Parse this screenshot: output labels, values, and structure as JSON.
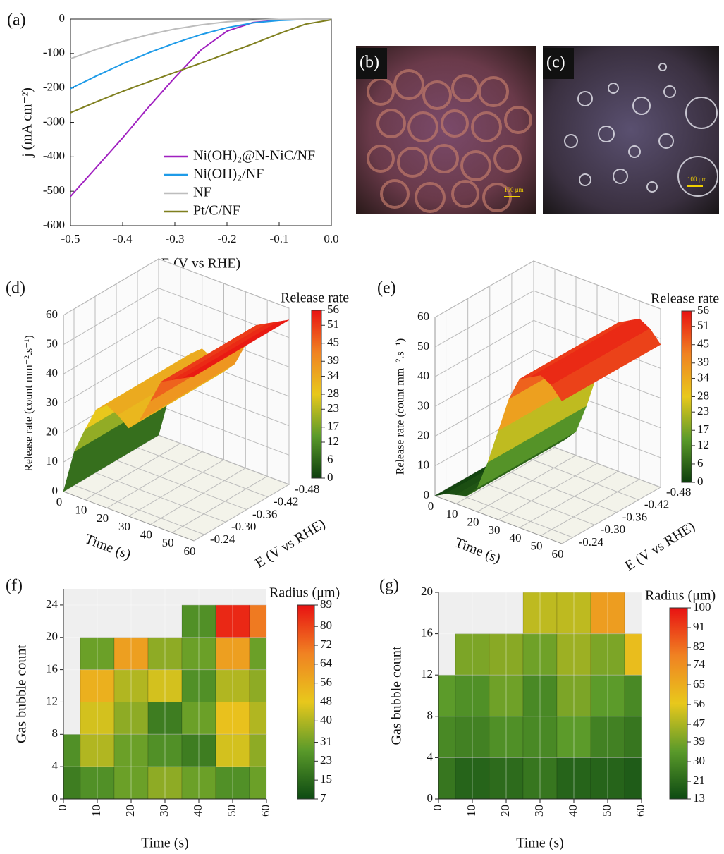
{
  "chart_data": [
    {
      "type": "line",
      "panel_label": "(a)",
      "xlabel": "E (V vs RHE)",
      "ylabel": "j (mA cm⁻²)",
      "x": [
        -0.5,
        -0.45,
        -0.4,
        -0.35,
        -0.3,
        -0.25,
        -0.2,
        -0.15,
        -0.1,
        -0.05,
        0
      ],
      "xlim": [
        -0.5,
        0
      ],
      "xticks": [
        -0.5,
        -0.4,
        -0.3,
        -0.2,
        -0.1,
        {
          "value": 0,
          "label": "0.0"
        }
      ],
      "ylim": [
        -600,
        0
      ],
      "yticks": [
        -600,
        -500,
        -400,
        -300,
        -200,
        -100,
        0
      ],
      "legend": "lower right",
      "series": [
        {
          "name": "Ni(OH)₂@N-NiC/NF",
          "color": "#a020c0",
          "values": [
            -515,
            -430,
            -345,
            -255,
            -170,
            -90,
            -35,
            -10,
            -3,
            -1,
            0
          ]
        },
        {
          "name": "Ni(OH)₂/NF",
          "color": "#1e9be8",
          "values": [
            -202,
            -165,
            -130,
            -98,
            -70,
            -45,
            -25,
            -11,
            -4,
            -1,
            0
          ]
        },
        {
          "name": "NF",
          "color": "#bdbdbd",
          "values": [
            -115,
            -88,
            -65,
            -45,
            -29,
            -17,
            -8,
            -3,
            -1,
            0,
            0
          ]
        },
        {
          "name": "Pt/C/NF",
          "color": "#7f7f1e",
          "values": [
            -272,
            -240,
            -210,
            -182,
            -155,
            -128,
            -100,
            -72,
            -42,
            -15,
            -2
          ]
        }
      ]
    },
    {
      "type": "image",
      "panel_label": "(b)",
      "scale_label": "100 μm"
    },
    {
      "type": "image",
      "panel_label": "(c)",
      "scale_label": "100 μm"
    },
    {
      "type": "surface",
      "panel_label": "(d)",
      "xlabel": "Time (s)",
      "ylabel": "E (V vs RHE)",
      "zlabel": "Release rate (count mm⁻².s⁻¹)",
      "colorbar_label": "Release rate",
      "x": [
        0,
        5,
        10,
        15,
        20,
        25,
        30,
        35,
        40,
        45,
        50,
        55,
        60
      ],
      "values": [
        0,
        15,
        24,
        32,
        35,
        33,
        30,
        34,
        42,
        50,
        52,
        54,
        56
      ],
      "xlim": [
        0,
        60
      ],
      "xticks": [
        0,
        10,
        20,
        30,
        40,
        50,
        60
      ],
      "ylim": [
        -0.21,
        -0.48
      ],
      "yticks": [
        -0.24,
        {
          "value": -0.3,
          "label": "-0.30"
        },
        -0.36,
        -0.42,
        -0.48
      ],
      "zlim": [
        0,
        60
      ],
      "zticks": [
        0,
        10,
        20,
        30,
        40,
        50,
        60
      ],
      "clim": [
        0,
        56
      ],
      "cticks": [
        0,
        6,
        12,
        17,
        23,
        28,
        34,
        39,
        45,
        51,
        56
      ],
      "colors": [
        "#0d3d0d",
        "#5a9a2a",
        "#e8c81c",
        "#f08222",
        "#e81212"
      ]
    },
    {
      "type": "surface",
      "panel_label": "(e)",
      "xlabel": "Time (s)",
      "ylabel": "E (V vs RHE)",
      "zlabel": "Release rate (count mm⁻².s⁻¹)",
      "colorbar_label": "Release rate",
      "x": [
        0,
        5,
        10,
        15,
        20,
        25,
        30,
        35,
        40,
        45,
        50,
        55,
        60
      ],
      "values": [
        0,
        2,
        3,
        4,
        8,
        18,
        30,
        42,
        50,
        52,
        54,
        52,
        48
      ],
      "xlim": [
        0,
        60
      ],
      "xticks": [
        0,
        10,
        20,
        30,
        40,
        50,
        60
      ],
      "ylim": [
        -0.21,
        -0.48
      ],
      "yticks": [
        -0.24,
        {
          "value": -0.3,
          "label": "-0.30"
        },
        -0.36,
        -0.42,
        -0.48
      ],
      "zlim": [
        0,
        60
      ],
      "zticks": [
        0,
        10,
        20,
        30,
        40,
        50,
        60
      ],
      "clim": [
        0,
        56
      ],
      "cticks": [
        0,
        6,
        12,
        17,
        23,
        28,
        34,
        39,
        45,
        51,
        56
      ],
      "colors": [
        "#0d3d0d",
        "#5a9a2a",
        "#e8c81c",
        "#f08222",
        "#e81212"
      ]
    },
    {
      "type": "heatmap",
      "panel_label": "(f)",
      "xlabel": "Time (s)",
      "ylabel": "Gas bubble count",
      "colorbar_label": "Radius (μm)",
      "x": [
        0,
        10,
        20,
        30,
        40,
        50,
        60
      ],
      "y": [
        2,
        6,
        10,
        14,
        18,
        22
      ],
      "z": [
        [
          20,
          25,
          30,
          35,
          30,
          25,
          30
        ],
        [
          25,
          40,
          30,
          25,
          20,
          45,
          35
        ],
        [
          null,
          45,
          35,
          20,
          30,
          50,
          40
        ],
        [
          null,
          55,
          40,
          45,
          25,
          40,
          35
        ],
        [
          null,
          30,
          60,
          35,
          30,
          60,
          30
        ],
        [
          null,
          null,
          null,
          null,
          25,
          85,
          70
        ]
      ],
      "xlim": [
        0,
        60
      ],
      "xticks": [
        0,
        10,
        20,
        30,
        40,
        50,
        60
      ],
      "ylim": [
        0,
        26
      ],
      "yticks": [
        0,
        4,
        8,
        12,
        16,
        20,
        24
      ],
      "clim": [
        7,
        89
      ],
      "cticks": [
        7,
        15,
        23,
        31,
        40,
        48,
        56,
        64,
        72,
        80,
        89
      ],
      "colors": [
        "#0d4a12",
        "#5a9a2a",
        "#e8c81c",
        "#f08222",
        "#e81212"
      ]
    },
    {
      "type": "heatmap",
      "panel_label": "(g)",
      "xlabel": "Time (s)",
      "ylabel": "Gas bubble count",
      "colorbar_label": "Radius (μm)",
      "x": [
        0,
        10,
        20,
        30,
        40,
        50,
        60
      ],
      "y": [
        2,
        6,
        10,
        14,
        18
      ],
      "z": [
        [
          25,
          20,
          22,
          25,
          20,
          20,
          18
        ],
        [
          30,
          28,
          32,
          30,
          35,
          28,
          25
        ],
        [
          35,
          32,
          38,
          30,
          40,
          35,
          30
        ],
        [
          null,
          40,
          42,
          38,
          45,
          40,
          60
        ],
        [
          null,
          null,
          null,
          50,
          50,
          70,
          null
        ]
      ],
      "xlim": [
        0,
        60
      ],
      "xticks": [
        0,
        10,
        20,
        30,
        40,
        50,
        60
      ],
      "ylim": [
        0,
        20
      ],
      "yticks": [
        0,
        4,
        8,
        12,
        16,
        20
      ],
      "clim": [
        13,
        100
      ],
      "cticks": [
        13,
        21,
        30,
        39,
        47,
        56,
        65,
        74,
        82,
        91,
        100
      ],
      "colors": [
        "#0d4a12",
        "#5a9a2a",
        "#e8c81c",
        "#f08222",
        "#e81212"
      ]
    }
  ]
}
